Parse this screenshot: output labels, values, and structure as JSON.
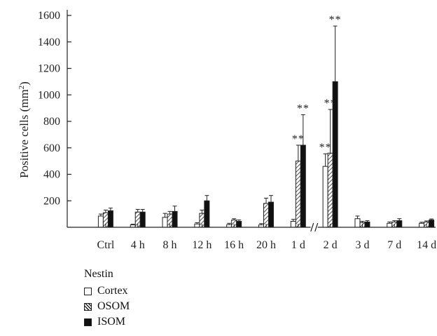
{
  "chart_data": {
    "type": "bar",
    "ylabel": "Positive cells (mm²)",
    "ylabel_main": "Positive cells (mm",
    "ylabel_sup": "2",
    "ylabel_close": ")",
    "ylim": [
      0,
      1600
    ],
    "yticks": [
      200,
      400,
      600,
      800,
      1000,
      1200,
      1400,
      1600
    ],
    "grid": false,
    "axis_break_between": [
      "1 d",
      "2 d"
    ],
    "categories": [
      "Ctrl",
      "4 h",
      "8 h",
      "12 h",
      "16 h",
      "20 h",
      "1 d",
      "2 d",
      "3 d",
      "7 d",
      "14 d"
    ],
    "series": [
      {
        "name": "Cortex",
        "fill": "white",
        "values": [
          85,
          18,
          75,
          25,
          20,
          18,
          45,
          460,
          65,
          30,
          30
        ],
        "errors": [
          15,
          5,
          30,
          10,
          10,
          10,
          15,
          95,
          20,
          10,
          8
        ]
      },
      {
        "name": "OSOM",
        "fill": "hatch",
        "values": [
          110,
          115,
          100,
          105,
          55,
          180,
          500,
          560,
          35,
          40,
          40
        ],
        "errors": [
          20,
          20,
          20,
          25,
          10,
          40,
          120,
          330,
          10,
          10,
          8
        ]
      },
      {
        "name": "ISOM",
        "fill": "black",
        "values": [
          125,
          115,
          120,
          200,
          45,
          190,
          620,
          1100,
          40,
          50,
          55
        ],
        "errors": [
          20,
          20,
          40,
          40,
          10,
          50,
          230,
          420,
          10,
          15,
          8
        ]
      }
    ],
    "significance": [
      {
        "category": "1 d",
        "series": "OSOM",
        "label": "**"
      },
      {
        "category": "1 d",
        "series": "ISOM",
        "label": "**"
      },
      {
        "category": "2 d",
        "series": "Cortex",
        "label": "**"
      },
      {
        "category": "2 d",
        "series": "OSOM",
        "label": "**"
      },
      {
        "category": "2 d",
        "series": "ISOM",
        "label": "**"
      }
    ],
    "legend": {
      "title": "Nestin",
      "placement": "bottom-left",
      "entries": [
        "Cortex",
        "OSOM",
        "ISOM"
      ]
    }
  }
}
